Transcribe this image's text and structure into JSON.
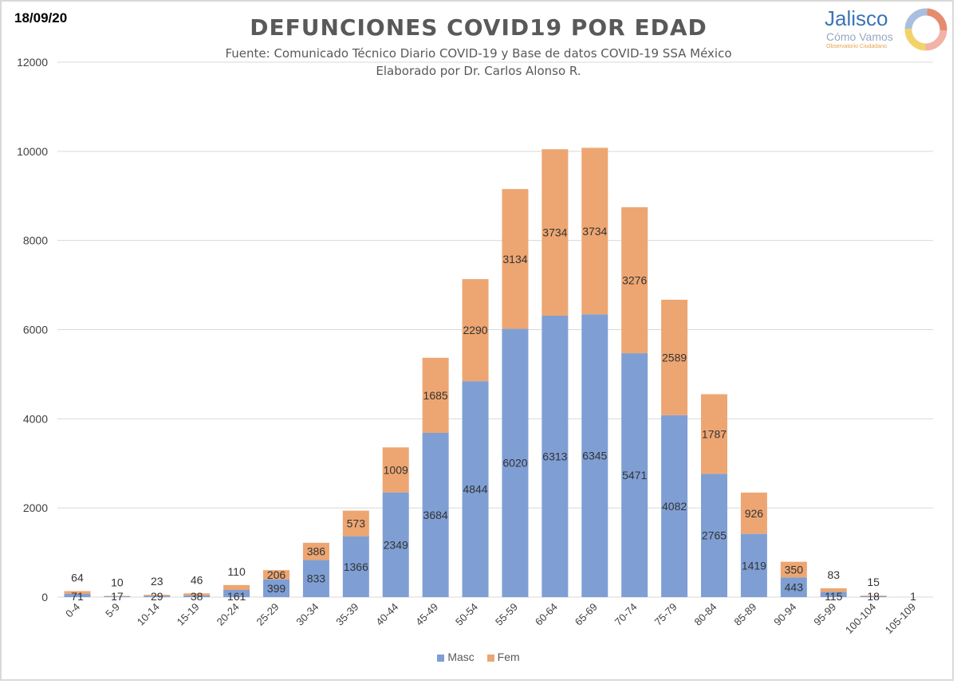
{
  "header": {
    "date": "18/09/20",
    "title": "DEFUNCIONES COVID19 POR EDAD",
    "subtitle_1": "Fuente: Comunicado Técnico Diario COVID-19 y Base de datos COVID-19 SSA México",
    "subtitle_2": "Elaborado por Dr. Carlos Alonso R."
  },
  "logo": {
    "line1": "Jalisco",
    "line2": "Cómo Vamos",
    "line3": "Observatorio Ciudadano"
  },
  "colors": {
    "masc": "#7f9fd4",
    "fem": "#eda672",
    "grid": "#d9d9d9",
    "text": "#595959"
  },
  "chart_data": {
    "type": "bar",
    "stacked": true,
    "categories": [
      "0-4",
      "5-9",
      "10-14",
      "15-19",
      "20-24",
      "25-29",
      "30-34",
      "35-39",
      "40-44",
      "45-49",
      "50-54",
      "55-59",
      "60-64",
      "65-69",
      "70-74",
      "75-79",
      "80-84",
      "85-89",
      "90-94",
      "95-99",
      "100-104",
      "105-109"
    ],
    "series": [
      {
        "name": "Masc",
        "values": [
          71,
          17,
          29,
          38,
          161,
          399,
          833,
          1366,
          2349,
          3684,
          4844,
          6020,
          6313,
          6345,
          5471,
          4082,
          2765,
          1419,
          443,
          115,
          18,
          1
        ]
      },
      {
        "name": "Fem",
        "values": [
          64,
          10,
          23,
          46,
          110,
          206,
          386,
          573,
          1009,
          1685,
          2290,
          3134,
          3734,
          3734,
          3276,
          2589,
          1787,
          926,
          350,
          83,
          15,
          0
        ]
      }
    ],
    "ylim": [
      0,
      12000
    ],
    "yticks": [
      0,
      2000,
      4000,
      6000,
      8000,
      10000,
      12000
    ],
    "grid": true,
    "legend": "bottom"
  }
}
